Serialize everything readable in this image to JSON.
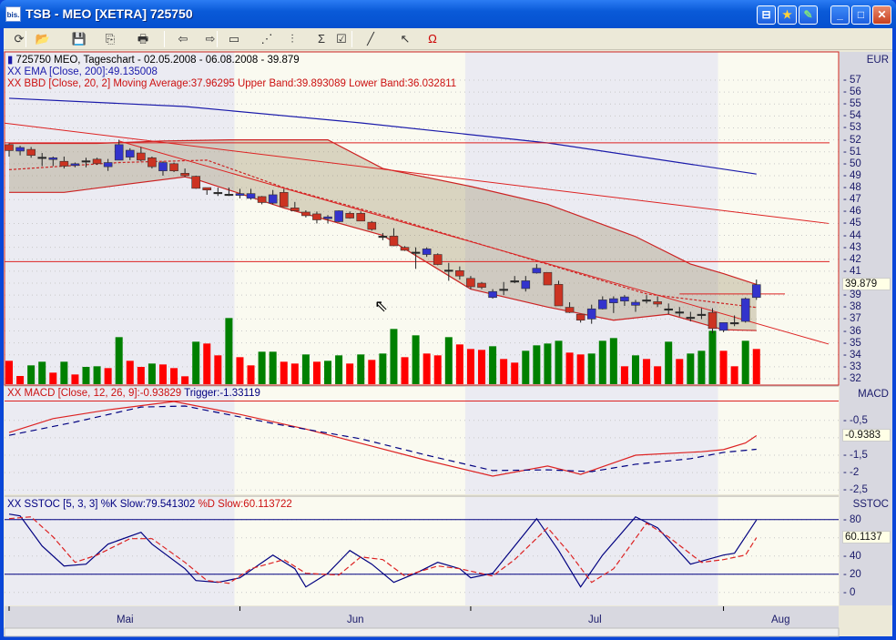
{
  "window": {
    "title": "TSB - MEO [XETRA] 725750",
    "app_icon_text": "bis.",
    "extra_buttons": [
      "pin-icon",
      "star-icon",
      "pen-icon"
    ],
    "min": "_",
    "max": "□",
    "close": "✕"
  },
  "toolbar": {
    "items": [
      {
        "name": "refresh-icon",
        "glyph": "⟳"
      },
      {
        "name": "open-folder-icon",
        "glyph": "📂"
      },
      {
        "name": "save-icon",
        "glyph": "💾"
      },
      {
        "name": "copy-icon",
        "glyph": "⎘"
      },
      {
        "name": "print-icon",
        "glyph": "🖶"
      },
      {
        "name": "back-chart-icon",
        "glyph": "⇦"
      },
      {
        "name": "forward-chart-icon",
        "glyph": "⇨"
      },
      {
        "name": "window-icon",
        "glyph": "▭"
      },
      {
        "name": "period-icon",
        "glyph": "⋰"
      },
      {
        "name": "chart-type-icon",
        "glyph": "⫶"
      },
      {
        "name": "indicator-sum-icon",
        "glyph": "Σ"
      },
      {
        "name": "properties-icon",
        "glyph": "☑"
      },
      {
        "name": "draw-line-icon",
        "glyph": "╱"
      },
      {
        "name": "pointer-icon",
        "glyph": "↖"
      },
      {
        "name": "magnet-icon",
        "glyph": "Ω"
      }
    ]
  },
  "legend": {
    "main": "725750  MEO, Tageschart - 02.05.2008 - 06.08.2008 - 39.879",
    "ema": "XX EMA [Close, 200]:49.135008",
    "bbd": "XX BBD [Close, 20, 2] Moving Average:37.96295 Upper Band:39.893089 Lower Band:36.032811",
    "macd": "XX MACD [Close, 12, 26, 9]:-0.93829",
    "macd_trigger": " Trigger:-1.33119",
    "sstoc_k": "XX SSTOC [5, 3, 3] %K Slow:79.541302",
    "sstoc_d": " %D Slow:60.113722"
  },
  "axes": {
    "price_unit": "EUR",
    "price_ticks": [
      57,
      56,
      55,
      54,
      53,
      52,
      51,
      50,
      49,
      48,
      47,
      46,
      45,
      44,
      43,
      42,
      41,
      39,
      38,
      37,
      36,
      35,
      34,
      33,
      32
    ],
    "last_price": "39.879",
    "macd_label": "MACD",
    "macd_ticks": [
      "-0,5",
      "-1,5",
      "-2",
      "-2,5"
    ],
    "macd_last": "-0.9383",
    "sstoc_label": "SSTOC",
    "sstoc_ticks": [
      "80",
      "40",
      "20",
      "0"
    ],
    "sstoc_last": "60.1137",
    "months": [
      "Mai",
      "Jun",
      "Jul",
      "Aug"
    ]
  },
  "colors": {
    "up": "#3333cc",
    "down": "#cc3322",
    "vol_up": "#008000",
    "vol_down": "#ff0000",
    "ema": "#1a1aaa",
    "band": "#cc2222",
    "macd": "#dd2222",
    "trigger": "#000080"
  },
  "chart_data": {
    "type": "candlestick",
    "dates": [
      "2008-05-02",
      "2008-05-05",
      "2008-05-06",
      "2008-05-07",
      "2008-05-08",
      "2008-05-09",
      "2008-05-12",
      "2008-05-13",
      "2008-05-14",
      "2008-05-15",
      "2008-05-16",
      "2008-05-19",
      "2008-05-20",
      "2008-05-21",
      "2008-05-22",
      "2008-05-23",
      "2008-05-26",
      "2008-05-27",
      "2008-05-28",
      "2008-05-29",
      "2008-05-30",
      "2008-06-02",
      "2008-06-03",
      "2008-06-04",
      "2008-06-05",
      "2008-06-06",
      "2008-06-09",
      "2008-06-10",
      "2008-06-11",
      "2008-06-12",
      "2008-06-13",
      "2008-06-16",
      "2008-06-17",
      "2008-06-18",
      "2008-06-19",
      "2008-06-20",
      "2008-06-23",
      "2008-06-24",
      "2008-06-25",
      "2008-06-26",
      "2008-06-27",
      "2008-06-30",
      "2008-07-01",
      "2008-07-02",
      "2008-07-03",
      "2008-07-04",
      "2008-07-07",
      "2008-07-08",
      "2008-07-09",
      "2008-07-10",
      "2008-07-11",
      "2008-07-14",
      "2008-07-15",
      "2008-07-16",
      "2008-07-17",
      "2008-07-18",
      "2008-07-21",
      "2008-07-22",
      "2008-07-23",
      "2008-07-24",
      "2008-07-25",
      "2008-07-28",
      "2008-07-29",
      "2008-07-30",
      "2008-07-31",
      "2008-08-01",
      "2008-08-04",
      "2008-08-05",
      "2008-08-06"
    ],
    "ohlc": [
      [
        51.6,
        51.7,
        50.6,
        51.1
      ],
      [
        51.06,
        51.5,
        50.7,
        51.36
      ],
      [
        51.2,
        51.4,
        50.5,
        50.7
      ],
      [
        50.55,
        50.9,
        49.8,
        50.55
      ],
      [
        50.35,
        50.6,
        49.8,
        50.5
      ],
      [
        50.2,
        50.6,
        49.6,
        49.8
      ],
      [
        49.85,
        50.1,
        49.7,
        50.0
      ],
      [
        50.25,
        50.5,
        49.7,
        50.25
      ],
      [
        50.38,
        50.5,
        49.9,
        50.0
      ],
      [
        49.75,
        50.4,
        49.4,
        50.1
      ],
      [
        50.3,
        52.0,
        50.3,
        51.6
      ],
      [
        50.55,
        51.3,
        50.3,
        51.13
      ],
      [
        50.9,
        51.4,
        50.2,
        50.3
      ],
      [
        50.5,
        50.6,
        49.6,
        49.75
      ],
      [
        49.4,
        50.2,
        49.0,
        50.1
      ],
      [
        50.0,
        50.1,
        49.3,
        49.4
      ],
      [
        49.2,
        49.6,
        48.9,
        49.0
      ],
      [
        48.95,
        49.0,
        47.9,
        47.94
      ],
      [
        48.0,
        48.0,
        47.4,
        47.8
      ],
      [
        47.6,
        48.0,
        47.3,
        47.6
      ],
      [
        47.45,
        48.0,
        47.3,
        47.45
      ],
      [
        47.35,
        47.9,
        47.1,
        47.5
      ],
      [
        47.1,
        47.9,
        47.0,
        47.5
      ],
      [
        47.25,
        47.3,
        46.6,
        46.75
      ],
      [
        46.7,
        47.8,
        46.6,
        47.4
      ],
      [
        47.6,
        47.9,
        46.4,
        46.4
      ],
      [
        46.3,
        46.8,
        46.0,
        46.05
      ],
      [
        45.95,
        46.1,
        45.5,
        45.65
      ],
      [
        45.8,
        46.0,
        45.0,
        45.3
      ],
      [
        45.4,
        45.7,
        45.0,
        45.55
      ],
      [
        45.15,
        46.1,
        45.1,
        46.06
      ],
      [
        45.85,
        46.0,
        45.4,
        45.45
      ],
      [
        45.85,
        46.0,
        45.2,
        45.2
      ],
      [
        45.1,
        45.2,
        44.4,
        44.5
      ],
      [
        43.94,
        44.2,
        43.6,
        43.94
      ],
      [
        43.94,
        44.6,
        43.1,
        43.13
      ],
      [
        43.0,
        43.1,
        42.7,
        42.75
      ],
      [
        42.6,
        43.0,
        41.2,
        42.6
      ],
      [
        42.4,
        43.0,
        42.2,
        42.87
      ],
      [
        42.4,
        42.5,
        41.5,
        41.56
      ],
      [
        41.1,
        41.7,
        40.2,
        41.1
      ],
      [
        41.05,
        41.4,
        40.3,
        40.6
      ],
      [
        40.4,
        40.6,
        39.5,
        39.7
      ],
      [
        40.0,
        40.1,
        39.5,
        39.65
      ],
      [
        38.8,
        39.5,
        38.7,
        39.3
      ],
      [
        39.5,
        40.1,
        39.0,
        39.5
      ],
      [
        40.2,
        40.6,
        40.0,
        40.2
      ],
      [
        39.55,
        40.6,
        39.3,
        40.2
      ],
      [
        40.85,
        41.6,
        40.8,
        41.25
      ],
      [
        40.9,
        40.9,
        39.85,
        39.85
      ],
      [
        39.9,
        40.2,
        38.1,
        38.1
      ],
      [
        37.98,
        38.4,
        37.5,
        37.55
      ],
      [
        37.4,
        37.4,
        36.7,
        36.9
      ],
      [
        37.0,
        38.2,
        36.6,
        37.85
      ],
      [
        37.85,
        38.9,
        37.8,
        38.6
      ],
      [
        38.35,
        38.9,
        37.5,
        38.7
      ],
      [
        38.5,
        39.0,
        38.1,
        38.85
      ],
      [
        38.15,
        38.6,
        37.6,
        38.4
      ],
      [
        38.6,
        39.0,
        38.3,
        38.6
      ],
      [
        38.45,
        38.9,
        38.0,
        38.25
      ],
      [
        37.85,
        38.3,
        37.4,
        37.85
      ],
      [
        37.6,
        38.0,
        37.2,
        37.6
      ],
      [
        37.15,
        37.6,
        36.8,
        37.15
      ],
      [
        37.4,
        37.9,
        37.0,
        37.4
      ],
      [
        37.55,
        37.9,
        35.8,
        36.2
      ],
      [
        36.05,
        36.7,
        35.9,
        36.7
      ],
      [
        36.7,
        37.3,
        36.4,
        36.7
      ],
      [
        36.8,
        38.8,
        36.7,
        38.7
      ],
      [
        38.8,
        40.3,
        38.6,
        39.879
      ]
    ],
    "volume_relative": [
      77,
      27,
      62,
      74,
      38,
      74,
      32,
      57,
      59,
      53,
      155,
      77,
      57,
      68,
      65,
      53,
      26,
      140,
      134,
      95,
      218,
      89,
      62,
      107,
      107,
      74,
      68,
      98,
      74,
      77,
      95,
      68,
      98,
      80,
      101,
      182,
      89,
      161,
      101,
      95,
      155,
      131,
      116,
      113,
      125,
      83,
      71,
      110,
      128,
      134,
      143,
      104,
      98,
      101,
      143,
      152,
      59,
      95,
      83,
      59,
      140,
      83,
      101,
      110,
      176,
      110,
      59,
      143,
      116
    ],
    "volume_color": [
      "r",
      "r",
      "g",
      "g",
      "r",
      "g",
      "r",
      "g",
      "g",
      "r",
      "g",
      "r",
      "r",
      "g",
      "r",
      "r",
      "r",
      "g",
      "r",
      "r",
      "g",
      "r",
      "r",
      "g",
      "g",
      "r",
      "r",
      "g",
      "r",
      "g",
      "g",
      "r",
      "g",
      "r",
      "g",
      "g",
      "r",
      "g",
      "r",
      "r",
      "g",
      "r",
      "r",
      "r",
      "g",
      "r",
      "r",
      "g",
      "g",
      "g",
      "g",
      "r",
      "r",
      "g",
      "g",
      "g",
      "r",
      "g",
      "r",
      "r",
      "g",
      "r",
      "g",
      "g",
      "g",
      "r",
      "r",
      "g",
      "r"
    ],
    "ylim": [
      31.6,
      57.8
    ],
    "ema200": [
      [
        "2008-05-02",
        55.48
      ],
      [
        "2008-05-26",
        54.79
      ],
      [
        "2008-06-17",
        53.42
      ],
      [
        "2008-07-10",
        51.74
      ],
      [
        "2008-08-06",
        49.135
      ]
    ],
    "bb_upper": [
      [
        "2008-05-02",
        51.7
      ],
      [
        "2008-05-14",
        51.7
      ],
      [
        "2008-05-22",
        51.9
      ],
      [
        "2008-05-30",
        52.0
      ],
      [
        "2008-06-12",
        52.0
      ],
      [
        "2008-06-19",
        49.6
      ],
      [
        "2008-07-01",
        48.1
      ],
      [
        "2008-07-10",
        46.6
      ],
      [
        "2008-07-22",
        43.9
      ],
      [
        "2008-07-29",
        41.6
      ],
      [
        "2008-08-01",
        40.8
      ],
      [
        "2008-08-06",
        39.893
      ]
    ],
    "bb_middle": [
      [
        "2008-05-02",
        49.5
      ],
      [
        "2008-05-16",
        50.1
      ],
      [
        "2008-05-28",
        50.3
      ],
      [
        "2008-06-06",
        48.0
      ],
      [
        "2008-06-19",
        45.7
      ],
      [
        "2008-07-01",
        43.5
      ],
      [
        "2008-07-11",
        41.3
      ],
      [
        "2008-07-23",
        39.1
      ],
      [
        "2008-08-06",
        37.963
      ]
    ],
    "bb_lower": [
      [
        "2008-05-02",
        47.6
      ],
      [
        "2008-05-09",
        47.6
      ],
      [
        "2008-05-16",
        48.2
      ],
      [
        "2008-05-26",
        48.9
      ],
      [
        "2008-05-27",
        48.7
      ],
      [
        "2008-06-06",
        46.3
      ],
      [
        "2008-06-19",
        44.0
      ],
      [
        "2008-07-01",
        39.5
      ],
      [
        "2008-07-10",
        38.0
      ],
      [
        "2008-07-18",
        36.9
      ],
      [
        "2008-07-25",
        37.4
      ],
      [
        "2008-08-01",
        36.1
      ],
      [
        "2008-08-06",
        36.033
      ]
    ],
    "horizontal_lines": [
      51.75,
      41.8
    ],
    "level_line": {
      "from": "2008-07-28",
      "value": 39.1
    },
    "trendlines": [
      {
        "left_value": 53.4,
        "right_value": 45.0
      },
      {
        "from": "2008-05-16",
        "from_value": 51.9,
        "right_value": 34.9
      }
    ],
    "macd": {
      "ylim": [
        -2.55,
        0.1
      ],
      "zero_line": 0,
      "macd": [
        [
          "2008-05-02",
          -0.85
        ],
        [
          "2008-05-08",
          -0.45
        ],
        [
          "2008-05-15",
          -0.2
        ],
        [
          "2008-05-23",
          0.04
        ],
        [
          "2008-06-02",
          -0.33
        ],
        [
          "2008-06-10",
          -0.75
        ],
        [
          "2008-06-17",
          -1.16
        ],
        [
          "2008-06-25",
          -1.65
        ],
        [
          "2008-07-03",
          -2.1
        ],
        [
          "2008-07-10",
          -1.81
        ],
        [
          "2008-07-15",
          -2.05
        ],
        [
          "2008-07-22",
          -1.5
        ],
        [
          "2008-07-30",
          -1.4
        ],
        [
          "2008-08-01",
          -1.34
        ],
        [
          "2008-08-05",
          -1.15
        ],
        [
          "2008-08-06",
          -0.938
        ]
      ],
      "trigger": [
        [
          "2008-05-02",
          -0.93
        ],
        [
          "2008-05-12",
          -0.55
        ],
        [
          "2008-05-20",
          -0.12
        ],
        [
          "2008-05-26",
          -0.09
        ],
        [
          "2008-06-05",
          -0.59
        ],
        [
          "2008-06-17",
          -1.03
        ],
        [
          "2008-06-25",
          -1.5
        ],
        [
          "2008-07-03",
          -1.94
        ],
        [
          "2008-07-10",
          -1.92
        ],
        [
          "2008-07-16",
          -1.97
        ],
        [
          "2008-07-22",
          -1.76
        ],
        [
          "2008-07-29",
          -1.6
        ],
        [
          "2008-08-01",
          -1.42
        ],
        [
          "2008-08-06",
          -1.331
        ]
      ]
    },
    "sstoc": {
      "ylim": [
        -7,
        92
      ],
      "levels": [
        80,
        20
      ],
      "k": [
        [
          "2008-05-02",
          86
        ],
        [
          "2008-05-05",
          84
        ],
        [
          "2008-05-07",
          51
        ],
        [
          "2008-05-09",
          29
        ],
        [
          "2008-05-13",
          31
        ],
        [
          "2008-05-15",
          53
        ],
        [
          "2008-05-20",
          66
        ],
        [
          "2008-05-21",
          53
        ],
        [
          "2008-05-26",
          26
        ],
        [
          "2008-05-27",
          13
        ],
        [
          "2008-05-29",
          11
        ],
        [
          "2008-06-02",
          16
        ],
        [
          "2008-06-05",
          41
        ],
        [
          "2008-06-09",
          26
        ],
        [
          "2008-06-10",
          6
        ],
        [
          "2008-06-12",
          21
        ],
        [
          "2008-06-16",
          46
        ],
        [
          "2008-06-18",
          31
        ],
        [
          "2008-06-20",
          11
        ],
        [
          "2008-06-24",
          21
        ],
        [
          "2008-06-26",
          33
        ],
        [
          "2008-06-30",
          26
        ],
        [
          "2008-07-01",
          16
        ],
        [
          "2008-07-03",
          21
        ],
        [
          "2008-07-07",
          51
        ],
        [
          "2008-07-09",
          81
        ],
        [
          "2008-07-11",
          46
        ],
        [
          "2008-07-15",
          6
        ],
        [
          "2008-07-17",
          41
        ],
        [
          "2008-07-22",
          83
        ],
        [
          "2008-07-24",
          71
        ],
        [
          "2008-07-29",
          31
        ],
        [
          "2008-08-01",
          41
        ],
        [
          "2008-08-04",
          43
        ],
        [
          "2008-08-06",
          79.5
        ]
      ],
      "d": [
        [
          "2008-05-02",
          81
        ],
        [
          "2008-05-06",
          83
        ],
        [
          "2008-05-08",
          61
        ],
        [
          "2008-05-12",
          33
        ],
        [
          "2008-05-14",
          41
        ],
        [
          "2008-05-19",
          59
        ],
        [
          "2008-05-21",
          59
        ],
        [
          "2008-05-26",
          33
        ],
        [
          "2008-05-28",
          13
        ],
        [
          "2008-05-30",
          10
        ],
        [
          "2008-06-03",
          26
        ],
        [
          "2008-06-06",
          36
        ],
        [
          "2008-06-10",
          21
        ],
        [
          "2008-06-13",
          19
        ],
        [
          "2008-06-17",
          39
        ],
        [
          "2008-06-19",
          36
        ],
        [
          "2008-06-23",
          18
        ],
        [
          "2008-06-26",
          29
        ],
        [
          "2008-06-30",
          26
        ],
        [
          "2008-07-03",
          18
        ],
        [
          "2008-07-07",
          36
        ],
        [
          "2008-07-10",
          71
        ],
        [
          "2008-07-14",
          43
        ],
        [
          "2008-07-16",
          11
        ],
        [
          "2008-07-18",
          26
        ],
        [
          "2008-07-23",
          76
        ],
        [
          "2008-07-25",
          61
        ],
        [
          "2008-07-30",
          33
        ],
        [
          "2008-08-01",
          36
        ],
        [
          "2008-08-05",
          41
        ],
        [
          "2008-08-06",
          60.1
        ]
      ]
    }
  }
}
